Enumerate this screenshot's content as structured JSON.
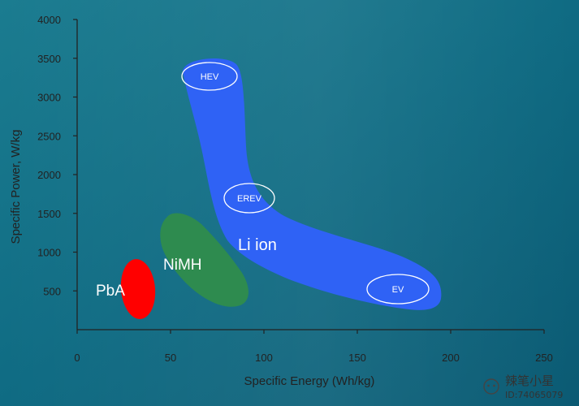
{
  "chart_data": {
    "type": "scatter",
    "xlabel": "Specific Energy (Wh/kg)",
    "ylabel": "Specific Power, W/kg",
    "xlim": [
      0,
      250
    ],
    "ylim": [
      0,
      4000
    ],
    "x_ticks": [
      "0",
      "50",
      "100",
      "150",
      "200",
      "250"
    ],
    "y_ticks": [
      "500",
      "1000",
      "1500",
      "2000",
      "2500",
      "3000",
      "3500",
      "4000"
    ],
    "regions": [
      {
        "label": "PbA",
        "color": "#ff0000",
        "x": [
          24,
          42
        ],
        "y": [
          230,
          980
        ]
      },
      {
        "label": "NiMH",
        "color": "#2e8b4f",
        "x": [
          45,
          95
        ],
        "y": [
          330,
          1530
        ]
      },
      {
        "label": "Li ion",
        "color": "#2f62f5",
        "x": [
          58,
          198
        ],
        "y": [
          220,
          3530
        ]
      }
    ],
    "markers": [
      {
        "label": "HEV",
        "x": 72,
        "y": 3300
      },
      {
        "label": "EREV",
        "x": 94,
        "y": 1680
      },
      {
        "label": "EV",
        "x": 175,
        "y": 560
      }
    ],
    "colors": {
      "background": "#0f6f88",
      "axes": "#222222"
    }
  },
  "watermark": {
    "line1": "辣笔小星",
    "line2": "ID:74065079"
  }
}
